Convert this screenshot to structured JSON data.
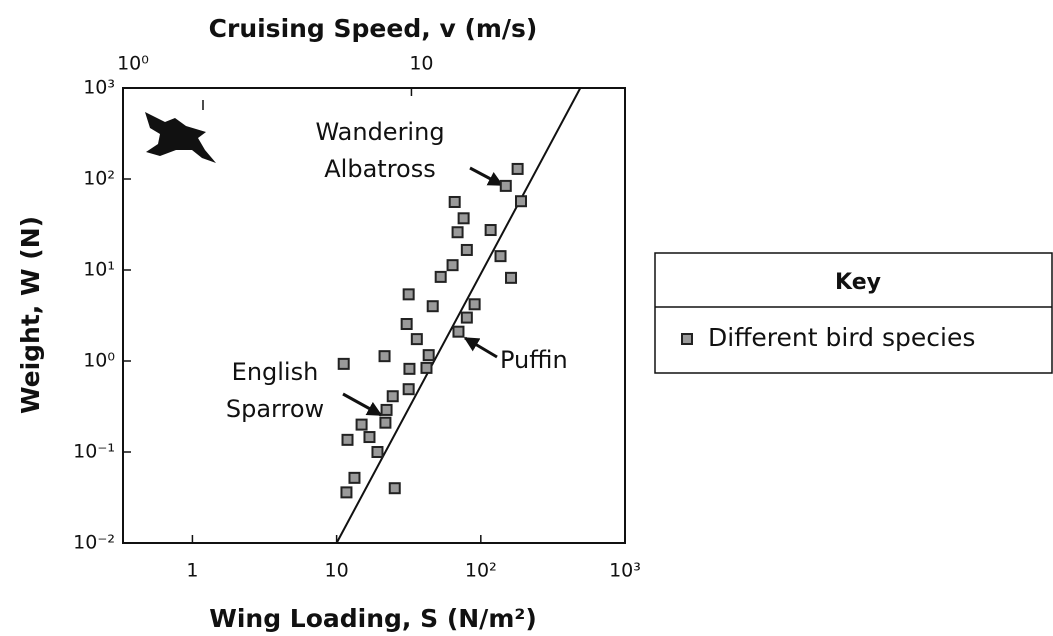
{
  "chart_data": {
    "type": "scatter",
    "xlabel": "Wing Loading, S (N/m²)",
    "ylabel": "Weight, W (N)",
    "x2label": "Cruising Speed, v (m/s)",
    "xscale": "log",
    "yscale": "log",
    "x2scale": "log",
    "xlim": [
      0.33,
      1000
    ],
    "ylim": [
      0.01,
      1000
    ],
    "x2lim": [
      1,
      55
    ],
    "xticks": [
      1,
      10,
      {
        "value": 100,
        "label": "10²"
      },
      {
        "value": 1000,
        "label": "10³"
      }
    ],
    "yticks": [
      {
        "value": 0.01,
        "label": "10⁻²"
      },
      {
        "value": 0.1,
        "label": "10⁻¹"
      },
      {
        "value": 1,
        "label": "10⁰"
      },
      {
        "value": 10,
        "label": "10¹"
      },
      {
        "value": 100,
        "label": "10²"
      },
      {
        "value": 1000,
        "label": "10³"
      }
    ],
    "x2ticks": [
      {
        "value": 1,
        "label": "10⁰"
      },
      10
    ],
    "series": [
      {
        "name": "Different bird species",
        "color": "#9a9a9a",
        "x": [
          11.2,
          21.5,
          31.6,
          30.6,
          36,
          32,
          31.6,
          24.5,
          22.2,
          21.8,
          14.9,
          11.9,
          16.9,
          19.2,
          13.3,
          11.7,
          25.3,
          43.5,
          42,
          46.4,
          52.7,
          63.7,
          65.9,
          69,
          76,
          80,
          70,
          80,
          90.6,
          117,
          137,
          149,
          180,
          190,
          162
        ],
        "values": [
          0.93,
          1.13,
          5.4,
          2.55,
          1.74,
          0.82,
          0.49,
          0.41,
          0.29,
          0.21,
          0.2,
          0.136,
          0.146,
          0.1,
          0.052,
          0.036,
          0.04,
          1.16,
          0.84,
          4.0,
          8.4,
          11.3,
          55.9,
          26,
          37,
          16.6,
          2.1,
          3.0,
          4.2,
          27.5,
          14.2,
          84,
          129,
          57,
          8.2
        ]
      }
    ],
    "fit_line": {
      "x": [
        10,
        490
      ],
      "y": [
        0.01,
        1000
      ],
      "color": "#111111"
    },
    "annotations": [
      {
        "text": [
          "Wandering",
          "Albatross"
        ]
      },
      {
        "text": [
          "Puffin"
        ]
      },
      {
        "text": [
          "English",
          "Sparrow"
        ]
      }
    ],
    "legend_title": "Key"
  }
}
